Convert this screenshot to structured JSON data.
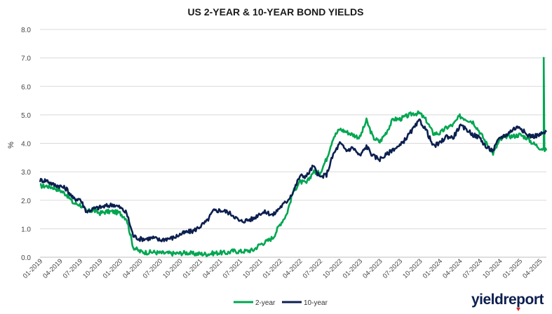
{
  "chart_data": {
    "type": "line",
    "title": "US 2-YEAR & 10-YEAR BOND YIELDS",
    "xlabel": "",
    "ylabel": "%",
    "ylim": [
      0,
      8
    ],
    "yticks": [
      "0.0",
      "1.0",
      "2.0",
      "3.0",
      "4.0",
      "5.0",
      "6.0",
      "7.0",
      "8.0"
    ],
    "x_tick_labels": [
      "01-2019",
      "04-2019",
      "07-2019",
      "10-2019",
      "01-2020",
      "04-2020",
      "07-2020",
      "10-2020",
      "01-2021",
      "04-2021",
      "07-2021",
      "10-2021",
      "01-2022",
      "04-2022",
      "07-2022",
      "10-2022",
      "01-2023",
      "04-2023",
      "07-2023",
      "10-2023",
      "01-2024",
      "04-2024",
      "07-2024",
      "10-2024",
      "01-2025",
      "04-2025"
    ],
    "grid": "horizontal",
    "legend": "bottom",
    "x": [
      "01-2019",
      "02-2019",
      "03-2019",
      "04-2019",
      "05-2019",
      "06-2019",
      "07-2019",
      "08-2019",
      "09-2019",
      "10-2019",
      "11-2019",
      "12-2019",
      "01-2020",
      "02-2020",
      "03-2020",
      "04-2020",
      "05-2020",
      "06-2020",
      "07-2020",
      "08-2020",
      "09-2020",
      "10-2020",
      "11-2020",
      "12-2020",
      "01-2021",
      "02-2021",
      "03-2021",
      "04-2021",
      "05-2021",
      "06-2021",
      "07-2021",
      "08-2021",
      "09-2021",
      "10-2021",
      "11-2021",
      "12-2021",
      "01-2022",
      "02-2022",
      "03-2022",
      "04-2022",
      "05-2022",
      "06-2022",
      "07-2022",
      "08-2022",
      "09-2022",
      "10-2022",
      "11-2022",
      "12-2022",
      "01-2023",
      "02-2023",
      "03-2023",
      "04-2023",
      "05-2023",
      "06-2023",
      "07-2023",
      "08-2023",
      "09-2023",
      "10-2023",
      "11-2023",
      "12-2023",
      "01-2024",
      "02-2024",
      "03-2024",
      "04-2024",
      "05-2024",
      "06-2024",
      "07-2024",
      "08-2024",
      "09-2024",
      "10-2024",
      "11-2024",
      "12-2024",
      "01-2025",
      "02-2025",
      "03-2025",
      "04-2025",
      "05-2025"
    ],
    "series": [
      {
        "name": "2-year",
        "color": "#00a651",
        "values": [
          2.5,
          2.5,
          2.45,
          2.35,
          2.2,
          1.9,
          1.85,
          1.6,
          1.65,
          1.55,
          1.6,
          1.6,
          1.55,
          1.35,
          0.35,
          0.2,
          0.17,
          0.18,
          0.15,
          0.14,
          0.13,
          0.14,
          0.16,
          0.12,
          0.12,
          0.11,
          0.14,
          0.16,
          0.15,
          0.22,
          0.2,
          0.22,
          0.25,
          0.45,
          0.55,
          0.7,
          1.15,
          1.5,
          2.3,
          2.65,
          2.6,
          3.0,
          2.95,
          3.45,
          4.2,
          4.5,
          4.4,
          4.3,
          4.2,
          4.8,
          4.2,
          4.05,
          4.4,
          4.85,
          4.85,
          4.95,
          5.05,
          5.05,
          4.8,
          4.35,
          4.35,
          4.55,
          4.65,
          4.95,
          4.85,
          4.75,
          4.4,
          4.0,
          3.65,
          4.1,
          4.25,
          4.25,
          4.3,
          4.2,
          4.0,
          3.85,
          3.75
        ]
      },
      {
        "name": "10-year",
        "color": "#0c1f4f",
        "values": [
          2.7,
          2.7,
          2.55,
          2.5,
          2.4,
          2.05,
          2.05,
          1.6,
          1.7,
          1.75,
          1.8,
          1.85,
          1.75,
          1.55,
          0.75,
          0.64,
          0.65,
          0.68,
          0.6,
          0.65,
          0.68,
          0.8,
          0.88,
          0.92,
          1.08,
          1.25,
          1.62,
          1.65,
          1.6,
          1.48,
          1.25,
          1.3,
          1.35,
          1.55,
          1.58,
          1.48,
          1.75,
          1.95,
          2.3,
          2.85,
          2.85,
          3.2,
          2.8,
          2.9,
          3.6,
          4.0,
          3.75,
          3.85,
          3.55,
          3.9,
          3.55,
          3.45,
          3.6,
          3.8,
          3.9,
          4.2,
          4.5,
          4.8,
          4.45,
          3.9,
          4.0,
          4.25,
          4.2,
          4.6,
          4.5,
          4.3,
          4.2,
          3.85,
          3.75,
          4.2,
          4.3,
          4.5,
          4.6,
          4.3,
          4.25,
          4.3,
          4.4
        ]
      }
    ],
    "spike": {
      "series": "2-year",
      "x": "04-2025",
      "value": 7.0
    }
  },
  "legend": {
    "items": [
      {
        "label": "2-year",
        "color": "#00a651"
      },
      {
        "label": "10-year",
        "color": "#0c1f4f"
      }
    ]
  },
  "brand": {
    "text": "yieldreport"
  }
}
